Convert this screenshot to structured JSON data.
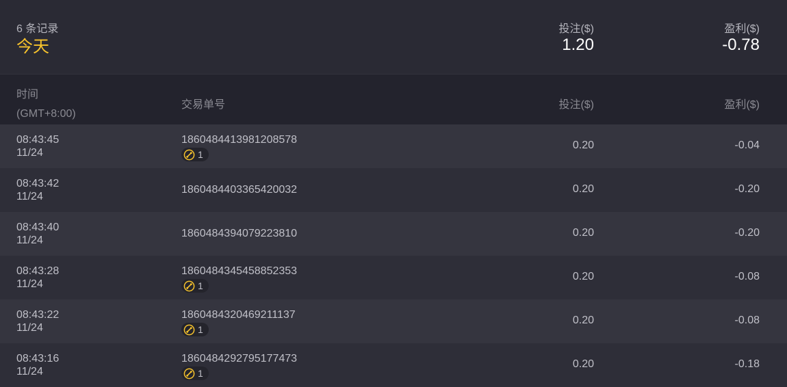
{
  "summary": {
    "count": "6 条记录",
    "period": "今天",
    "bet_label": "投注($)",
    "bet_total": "1.20",
    "profit_label": "盈利($)",
    "profit_total": "-0.78"
  },
  "columns": {
    "time": "时间",
    "timezone": "(GMT+8:00)",
    "order_id": "交易单号",
    "bet": "投注($)",
    "profit": "盈利($)"
  },
  "colors": {
    "accent": "#f6c22c"
  },
  "rows": [
    {
      "time": "08:43:45",
      "date": "11/24",
      "order_id": "1860484413981208578",
      "badge": "1",
      "bet": "0.20",
      "profit": "-0.04"
    },
    {
      "time": "08:43:42",
      "date": "11/24",
      "order_id": "1860484403365420032",
      "badge": null,
      "bet": "0.20",
      "profit": "-0.20"
    },
    {
      "time": "08:43:40",
      "date": "11/24",
      "order_id": "1860484394079223810",
      "badge": null,
      "bet": "0.20",
      "profit": "-0.20"
    },
    {
      "time": "08:43:28",
      "date": "11/24",
      "order_id": "1860484345458852353",
      "badge": "1",
      "bet": "0.20",
      "profit": "-0.08"
    },
    {
      "time": "08:43:22",
      "date": "11/24",
      "order_id": "1860484320469211137",
      "badge": "1",
      "bet": "0.20",
      "profit": "-0.08"
    },
    {
      "time": "08:43:16",
      "date": "11/24",
      "order_id": "1860484292795177473",
      "badge": "1",
      "bet": "0.20",
      "profit": "-0.18"
    }
  ]
}
